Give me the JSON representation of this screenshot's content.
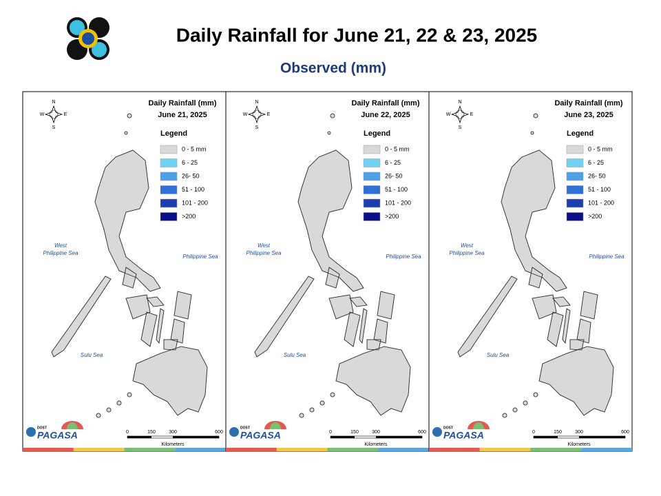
{
  "header": {
    "title": "Daily Rainfall for June 21, 22 & 23, 2025",
    "subtitle": "Observed (mm)"
  },
  "legend": {
    "title": "Legend",
    "items": [
      {
        "label": "0 - 5 mm",
        "color": "#d9d9d9"
      },
      {
        "label": "6 - 25",
        "color": "#6dd3f5"
      },
      {
        "label": "26- 50",
        "color": "#4ea0e6"
      },
      {
        "label": "51 - 100",
        "color": "#2f6fd6"
      },
      {
        "label": "101 - 200",
        "color": "#1c3fb0"
      },
      {
        "label": ">200",
        "color": "#0a0f8a"
      }
    ]
  },
  "compass": [
    "N",
    "W",
    "E",
    "S"
  ],
  "seas": {
    "west": [
      "West",
      "Philippine Sea"
    ],
    "east": "Philippine Sea",
    "sulu": "Sulu Sea"
  },
  "scale": {
    "ticks": [
      "0",
      "150",
      "300",
      "600"
    ],
    "unit": "Kilometers"
  },
  "logo": {
    "agency": "PAGASA",
    "dept": "DOST"
  },
  "panels": [
    {
      "title": "Daily Rainfall (mm)",
      "date": "June 21, 2025"
    },
    {
      "title": "Daily Rainfall (mm)",
      "date": "June 22, 2025"
    },
    {
      "title": "Daily Rainfall (mm)",
      "date": "June 23, 2025"
    }
  ]
}
